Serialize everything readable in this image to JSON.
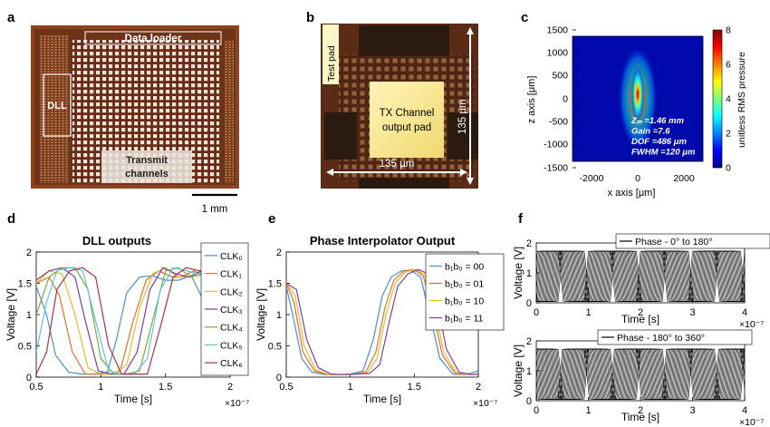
{
  "panels": {
    "a": {
      "letter": "a",
      "labels": {
        "data_loader": "Data loader",
        "dll": "DLL",
        "transmit_1": "Transmit",
        "transmit_2": "channels",
        "scale": "1 mm"
      }
    },
    "b": {
      "letter": "b",
      "labels": {
        "test_pad": "Test pad",
        "output_1": "TX Channel",
        "output_2": "output pad",
        "width": "135 µm",
        "height": "135 µm"
      }
    },
    "c": {
      "letter": "c",
      "labels": {
        "xlabel": "x axis [μm]",
        "ylabel": "z axis [μm]",
        "colorbar_label": "unitless RMS pressure",
        "annotations": [
          "Zₘ =1.46 mm",
          "Gain =7.6",
          "DOF =486 μm",
          "FWHM =120 μm"
        ]
      },
      "xticks": [
        "-2000",
        "0",
        "2000"
      ],
      "yticks": [
        "1500",
        "1000",
        "500",
        "0",
        "-500",
        "-1000",
        "-1500"
      ],
      "cbticks": [
        "8",
        "6",
        "4",
        "2",
        "0"
      ]
    },
    "d": {
      "letter": "d"
    },
    "e": {
      "letter": "e"
    },
    "f": {
      "letter": "f"
    }
  },
  "chart_data": [
    {
      "id": "d",
      "type": "line",
      "title": "DLL outputs",
      "xlabel": "Time [s]",
      "ylabel": "Voltage [V]",
      "xlim": [
        0.5,
        2.0
      ],
      "ylim": [
        0,
        2
      ],
      "xticks": [
        "0.5",
        "1",
        "1.5",
        "2"
      ],
      "yticks": [
        "0",
        "0.5",
        "1",
        "1.5",
        "2"
      ],
      "xexp": "×10⁻⁷",
      "grid": false,
      "legend_position": "right",
      "series": [
        {
          "name": "CLK₀",
          "color": "#4a90c8",
          "x": [
            0.5,
            0.58,
            0.65,
            0.75,
            0.85,
            0.95,
            1.05,
            1.12,
            1.2,
            1.3,
            1.4,
            1.5,
            1.6,
            1.7,
            1.8,
            1.9,
            2.0
          ],
          "values": [
            1.45,
            1.0,
            0.35,
            0.08,
            0.05,
            0.05,
            0.08,
            0.6,
            1.35,
            1.6,
            1.62,
            1.55,
            1.55,
            1.62,
            1.2,
            0.1,
            0.05
          ]
        },
        {
          "name": "CLK₁",
          "color": "#d9742a",
          "x": [
            0.5,
            0.6,
            0.68,
            0.78,
            0.88,
            0.98,
            1.08,
            1.15,
            1.25,
            1.35,
            1.45,
            1.55,
            1.62,
            1.72,
            1.82,
            1.92,
            2.0
          ],
          "values": [
            1.5,
            1.6,
            1.3,
            0.4,
            0.05,
            0.05,
            0.05,
            0.1,
            0.9,
            1.55,
            1.7,
            1.6,
            1.6,
            1.7,
            1.6,
            0.4,
            0.05
          ]
        },
        {
          "name": "CLK₂",
          "color": "#e8b830",
          "x": [
            0.5,
            0.6,
            0.7,
            0.8,
            0.9,
            1.0,
            1.1,
            1.2,
            1.3,
            1.4,
            1.5,
            1.6,
            1.7,
            1.8,
            1.9,
            2.0
          ],
          "values": [
            1.5,
            1.7,
            1.65,
            1.0,
            0.15,
            0.05,
            0.05,
            0.2,
            1.1,
            1.65,
            1.75,
            1.6,
            1.6,
            1.7,
            1.0,
            0.1
          ]
        },
        {
          "name": "CLK₃",
          "color": "#7e3f98",
          "x": [
            0.5,
            0.6,
            0.7,
            0.8,
            0.88,
            0.98,
            1.08,
            1.18,
            1.28,
            1.38,
            1.48,
            1.58,
            1.68,
            1.78,
            1.88,
            2.0
          ],
          "values": [
            1.55,
            1.7,
            1.75,
            1.6,
            0.9,
            0.1,
            0.05,
            0.05,
            0.4,
            1.4,
            1.75,
            1.65,
            1.6,
            1.7,
            1.5,
            0.2
          ]
        },
        {
          "name": "CLK₄",
          "color": "#78ac3c",
          "x": [
            0.5,
            0.6,
            0.7,
            0.8,
            0.9,
            1.0,
            1.1,
            1.2,
            1.3,
            1.4,
            1.5,
            1.6,
            1.7,
            1.8,
            1.9,
            2.0
          ],
          "values": [
            1.0,
            1.6,
            1.75,
            1.75,
            1.4,
            0.3,
            0.05,
            0.05,
            0.1,
            0.9,
            1.7,
            1.75,
            1.6,
            1.65,
            1.7,
            0.9
          ]
        },
        {
          "name": "CLK₅",
          "color": "#5ec2e6",
          "x": [
            0.5,
            0.58,
            0.66,
            0.76,
            0.86,
            0.96,
            1.06,
            1.16,
            1.26,
            1.36,
            1.46,
            1.56,
            1.66,
            1.76,
            1.86,
            2.0
          ],
          "values": [
            0.4,
            1.2,
            1.7,
            1.75,
            1.7,
            0.9,
            0.1,
            0.05,
            0.05,
            0.3,
            1.4,
            1.75,
            1.7,
            1.65,
            1.7,
            1.3
          ]
        },
        {
          "name": "CLK₆",
          "color": "#a8324a",
          "x": [
            0.5,
            0.58,
            0.66,
            0.76,
            0.86,
            0.96,
            1.06,
            1.16,
            1.26,
            1.36,
            1.46,
            1.56,
            1.66,
            1.76,
            1.86,
            2.0
          ],
          "values": [
            0.05,
            0.4,
            1.4,
            1.7,
            1.75,
            1.6,
            0.5,
            0.05,
            0.05,
            0.05,
            0.8,
            1.6,
            1.75,
            1.7,
            1.7,
            1.6
          ]
        }
      ]
    },
    {
      "id": "e",
      "type": "line",
      "title": "Phase Interpolator Output",
      "xlabel": "Time [s]",
      "ylabel": "Voltage [V]",
      "xlim": [
        0.5,
        2.0
      ],
      "ylim": [
        0,
        2
      ],
      "xticks": [
        "0.5",
        "1",
        "1.5",
        "2"
      ],
      "yticks": [
        "0",
        "0.5",
        "1",
        "1.5",
        "2"
      ],
      "xexp": "×10⁻⁷",
      "grid": false,
      "legend_position": "right",
      "series": [
        {
          "name": "b₁b₀ = 00",
          "color": "#4a90c8",
          "x": [
            0.5,
            0.55,
            0.62,
            0.7,
            0.8,
            0.9,
            1.0,
            1.1,
            1.18,
            1.25,
            1.32,
            1.4,
            1.48,
            1.55,
            1.62,
            1.7,
            1.8,
            1.9,
            2.0
          ],
          "values": [
            1.45,
            1.0,
            0.3,
            0.08,
            0.04,
            0.04,
            0.05,
            0.1,
            0.6,
            1.3,
            1.6,
            1.7,
            1.7,
            1.6,
            1.0,
            0.3,
            0.05,
            0.04,
            0.1
          ]
        },
        {
          "name": "b₁b₀ = 01",
          "color": "#d9742a",
          "x": [
            0.5,
            0.56,
            0.63,
            0.72,
            0.82,
            0.92,
            1.02,
            1.12,
            1.2,
            1.27,
            1.34,
            1.42,
            1.5,
            1.57,
            1.64,
            1.72,
            1.82,
            1.92,
            2.0
          ],
          "values": [
            1.5,
            1.2,
            0.4,
            0.1,
            0.04,
            0.04,
            0.05,
            0.08,
            0.4,
            1.1,
            1.55,
            1.7,
            1.72,
            1.62,
            1.1,
            0.35,
            0.06,
            0.04,
            0.05
          ]
        },
        {
          "name": "b₁b₀ = 10",
          "color": "#e8b830",
          "x": [
            0.5,
            0.57,
            0.64,
            0.73,
            0.83,
            0.93,
            1.03,
            1.13,
            1.21,
            1.28,
            1.35,
            1.43,
            1.51,
            1.58,
            1.65,
            1.73,
            1.83,
            1.93,
            2.0
          ],
          "values": [
            1.5,
            1.3,
            0.5,
            0.12,
            0.04,
            0.04,
            0.05,
            0.07,
            0.3,
            1.0,
            1.5,
            1.68,
            1.72,
            1.64,
            1.2,
            0.4,
            0.07,
            0.04,
            0.05
          ]
        },
        {
          "name": "b₁b₀ = 11",
          "color": "#7e3f98",
          "x": [
            0.5,
            0.58,
            0.66,
            0.75,
            0.85,
            0.95,
            1.05,
            1.15,
            1.23,
            1.3,
            1.37,
            1.45,
            1.53,
            1.6,
            1.67,
            1.75,
            1.85,
            1.95,
            2.0
          ],
          "values": [
            1.5,
            1.4,
            0.6,
            0.15,
            0.05,
            0.04,
            0.05,
            0.06,
            0.2,
            0.85,
            1.45,
            1.65,
            1.72,
            1.66,
            1.3,
            0.45,
            0.08,
            0.04,
            0.05
          ]
        }
      ]
    },
    {
      "id": "f1",
      "type": "line",
      "xlabel": "Time [s]",
      "ylabel": "Voltage [V]",
      "xlim": [
        0,
        4
      ],
      "ylim": [
        0,
        2
      ],
      "xticks": [
        "0",
        "1",
        "2",
        "3",
        "4"
      ],
      "yticks": [
        "0",
        "1",
        "2"
      ],
      "xexp": "×10⁻⁷",
      "grid": false,
      "legend_position": "top-right",
      "series": [
        {
          "name": "Phase - 0° to 180°",
          "color": "#000000",
          "period": 1.0,
          "phase_span": [
            0,
            0.5
          ]
        }
      ]
    },
    {
      "id": "f2",
      "type": "line",
      "xlabel": "Time [s]",
      "ylabel": "Voltage [V]",
      "xlim": [
        0,
        4
      ],
      "ylim": [
        0,
        2
      ],
      "xticks": [
        "0",
        "1",
        "2",
        "3",
        "4"
      ],
      "yticks": [
        "0",
        "1",
        "2"
      ],
      "xexp": "×10⁻⁷",
      "grid": false,
      "legend_position": "top-right",
      "series": [
        {
          "name": "Phase - 180° to 360°",
          "color": "#000000",
          "period": 1.0,
          "phase_span": [
            0.5,
            1.0
          ]
        }
      ]
    }
  ]
}
